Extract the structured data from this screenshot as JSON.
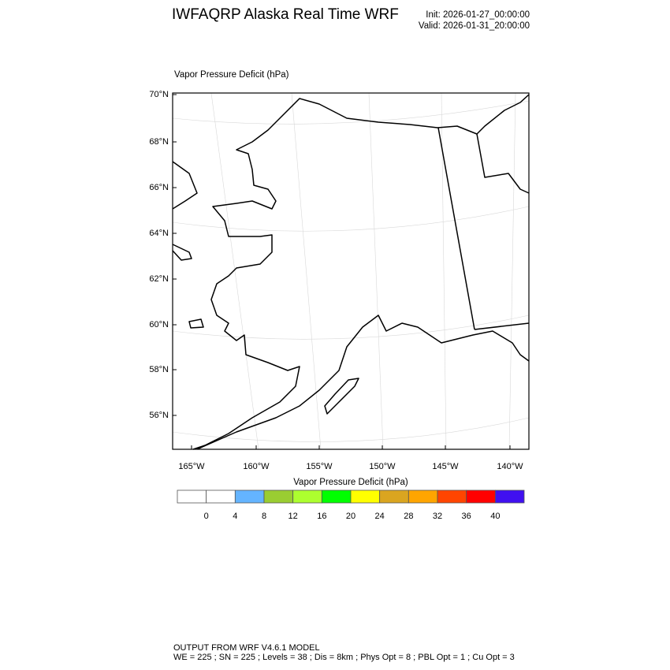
{
  "header": {
    "title": "IWFAQRP Alaska Real Time WRF",
    "init": "Init: 2026-01-27_00:00:00",
    "valid": "Valid: 2026-01-31_20:00:00"
  },
  "map": {
    "field_title": "Vapor Pressure Deficit   (hPa)",
    "region": "Alaska",
    "projection": "polar stereographic",
    "lat_labels": [
      "70°N",
      "68°N",
      "66°N",
      "64°N",
      "62°N",
      "60°N",
      "58°N",
      "56°N"
    ],
    "lon_labels": [
      "165°W",
      "160°W",
      "155°W",
      "150°W",
      "145°W",
      "140°W"
    ],
    "field_colors_shown": "all white (below 0-4 hPa threshold)"
  },
  "colorbar": {
    "title": "Vapor Pressure Deficit  (hPa)",
    "labels": [
      "0",
      "4",
      "8",
      "12",
      "16",
      "20",
      "24",
      "28",
      "32",
      "36",
      "40"
    ],
    "colors": [
      "#ffffff",
      "#ffffff",
      "#64b4ff",
      "#9acd32",
      "#adff2f",
      "#00ff00",
      "#ffff00",
      "#daa520",
      "#ffa500",
      "#ff4500",
      "#ff0000",
      "#4010f0"
    ]
  },
  "footer": {
    "line1": "OUTPUT FROM WRF V4.6.1 MODEL",
    "line2": "WE = 225 ; SN = 225 ; Levels = 38 ; Dis = 8km ; Phys Opt = 8 ; PBL Opt = 1 ; Cu Opt = 3"
  }
}
